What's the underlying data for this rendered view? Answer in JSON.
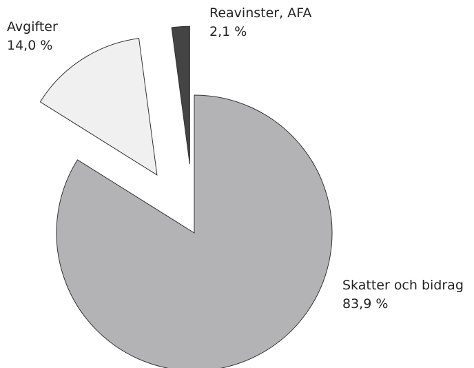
{
  "chart_data": {
    "type": "pie",
    "categories": [
      "Skatter och bidrag",
      "Avgifter",
      "Reavinster, AFA"
    ],
    "values": [
      83.9,
      14.0,
      2.1
    ],
    "value_labels": [
      "83,9 %",
      "14,0 %",
      "2,1 %"
    ],
    "colors": [
      "#b3b3b5",
      "#f0f0f0",
      "#444444"
    ],
    "exploded": [
      false,
      true,
      true
    ]
  }
}
